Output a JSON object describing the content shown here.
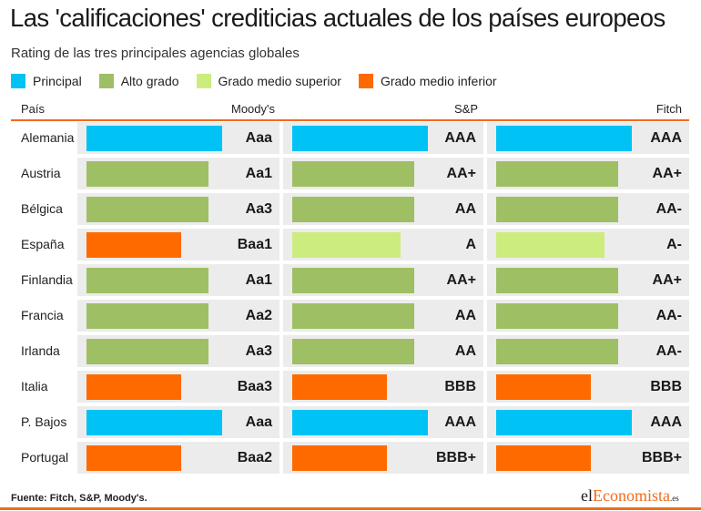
{
  "title": "Las 'calificaciones' crediticias actuales de los países europeos",
  "subtitle": "Rating de las tres principales agencias globales",
  "legend": [
    {
      "label": "Principal",
      "color": "#00c2f5"
    },
    {
      "label": "Alto grado",
      "color": "#9ebf64"
    },
    {
      "label": "Grado medio superior",
      "color": "#cdec7e"
    },
    {
      "label": "Grado medio inferior",
      "color": "#ff6a00"
    }
  ],
  "headers": {
    "country": "País",
    "moodys": "Moody's",
    "sp": "S&P",
    "fitch": "Fitch"
  },
  "chart_data": {
    "type": "table",
    "title": "Las 'calificaciones' crediticias actuales de los países europeos",
    "subtitle": "Rating de las tres principales agencias globales",
    "columns": [
      "Moody's",
      "S&P",
      "Fitch"
    ],
    "categories": {
      "Principal": "#00c2f5",
      "Alto grado": "#9ebf64",
      "Grado medio superior": "#cdec7e",
      "Grado medio inferior": "#ff6a00"
    },
    "rows": [
      {
        "country": "Alemania",
        "ratings": [
          {
            "rating": "Aaa",
            "category": "Principal",
            "level": 1.0
          },
          {
            "rating": "AAA",
            "category": "Principal",
            "level": 1.0
          },
          {
            "rating": "AAA",
            "category": "Principal",
            "level": 1.0
          }
        ]
      },
      {
        "country": "Austria",
        "ratings": [
          {
            "rating": "Aa1",
            "category": "Alto grado",
            "level": 0.9
          },
          {
            "rating": "AA+",
            "category": "Alto grado",
            "level": 0.9
          },
          {
            "rating": "AA+",
            "category": "Alto grado",
            "level": 0.9
          }
        ]
      },
      {
        "country": "Bélgica",
        "ratings": [
          {
            "rating": "Aa3",
            "category": "Alto grado",
            "level": 0.9
          },
          {
            "rating": "AA",
            "category": "Alto grado",
            "level": 0.9
          },
          {
            "rating": "AA-",
            "category": "Alto grado",
            "level": 0.9
          }
        ]
      },
      {
        "country": "España",
        "ratings": [
          {
            "rating": "Baa1",
            "category": "Grado medio inferior",
            "level": 0.7
          },
          {
            "rating": "A",
            "category": "Grado medio superior",
            "level": 0.8
          },
          {
            "rating": "A-",
            "category": "Grado medio superior",
            "level": 0.8
          }
        ]
      },
      {
        "country": "Finlandia",
        "ratings": [
          {
            "rating": "Aa1",
            "category": "Alto grado",
            "level": 0.9
          },
          {
            "rating": "AA+",
            "category": "Alto grado",
            "level": 0.9
          },
          {
            "rating": "AA+",
            "category": "Alto grado",
            "level": 0.9
          }
        ]
      },
      {
        "country": "Francia",
        "ratings": [
          {
            "rating": "Aa2",
            "category": "Alto grado",
            "level": 0.9
          },
          {
            "rating": "AA",
            "category": "Alto grado",
            "level": 0.9
          },
          {
            "rating": "AA-",
            "category": "Alto grado",
            "level": 0.9
          }
        ]
      },
      {
        "country": "Irlanda",
        "ratings": [
          {
            "rating": "Aa3",
            "category": "Alto grado",
            "level": 0.9
          },
          {
            "rating": "AA",
            "category": "Alto grado",
            "level": 0.9
          },
          {
            "rating": "AA-",
            "category": "Alto grado",
            "level": 0.9
          }
        ]
      },
      {
        "country": "Italia",
        "ratings": [
          {
            "rating": "Baa3",
            "category": "Grado medio inferior",
            "level": 0.7
          },
          {
            "rating": "BBB",
            "category": "Grado medio inferior",
            "level": 0.7
          },
          {
            "rating": "BBB",
            "category": "Grado medio inferior",
            "level": 0.7
          }
        ]
      },
      {
        "country": "P. Bajos",
        "ratings": [
          {
            "rating": "Aaa",
            "category": "Principal",
            "level": 1.0
          },
          {
            "rating": "AAA",
            "category": "Principal",
            "level": 1.0
          },
          {
            "rating": "AAA",
            "category": "Principal",
            "level": 1.0
          }
        ]
      },
      {
        "country": "Portugal",
        "ratings": [
          {
            "rating": "Baa2",
            "category": "Grado medio inferior",
            "level": 0.7
          },
          {
            "rating": "BBB+",
            "category": "Grado medio inferior",
            "level": 0.7
          },
          {
            "rating": "BBB+",
            "category": "Grado medio inferior",
            "level": 0.7
          }
        ]
      }
    ]
  },
  "footer": {
    "source": "Fuente: Fitch, S&P, Moody's."
  },
  "logo": {
    "part1": "el",
    "part2": "Economista",
    "suffix": ".es"
  }
}
